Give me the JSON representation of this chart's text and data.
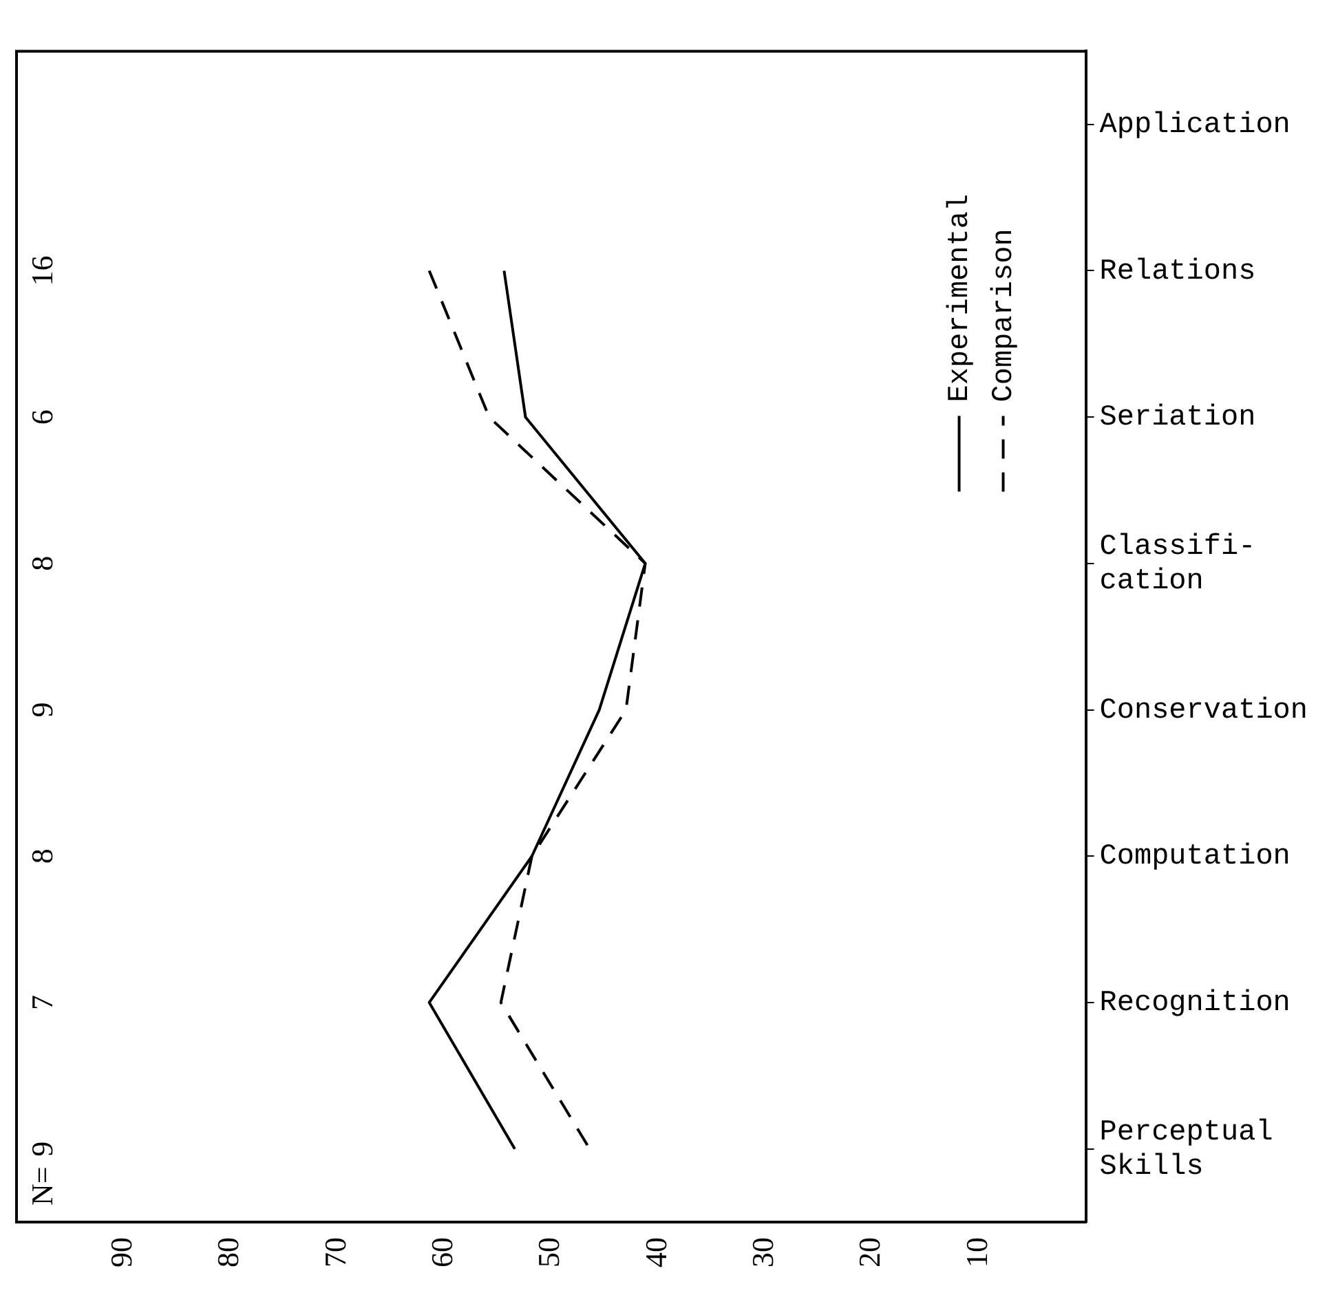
{
  "chart_data": {
    "type": "line",
    "orientation": "horizontal",
    "categories": [
      "Application",
      "Relations",
      "Seriation",
      "Classifi-\ncation",
      "Conservation",
      "Computation",
      "Recognition",
      "Perceptual\nSkills"
    ],
    "series": [
      {
        "name": "Experimental",
        "color": "#000000",
        "line_style": "solid",
        "values": [
          null,
          54.4,
          52.4,
          41.2,
          45.5,
          51.8,
          61.4,
          53.4
        ]
      },
      {
        "name": "Comparison",
        "color": "#000000",
        "line_style": "dashed",
        "values": [
          null,
          61.4,
          55.8,
          41.2,
          43,
          51.8,
          54.7,
          46.4
        ]
      }
    ],
    "xlim": [
      100,
      0
    ],
    "xticks": [
      90,
      80,
      70,
      60,
      50,
      40,
      30,
      20,
      10
    ],
    "grid": false,
    "marker": "none",
    "legend": "top right",
    "annotations": [
      "N=",
      "9",
      "7",
      "8",
      "9",
      "8",
      "6",
      "16"
    ]
  }
}
